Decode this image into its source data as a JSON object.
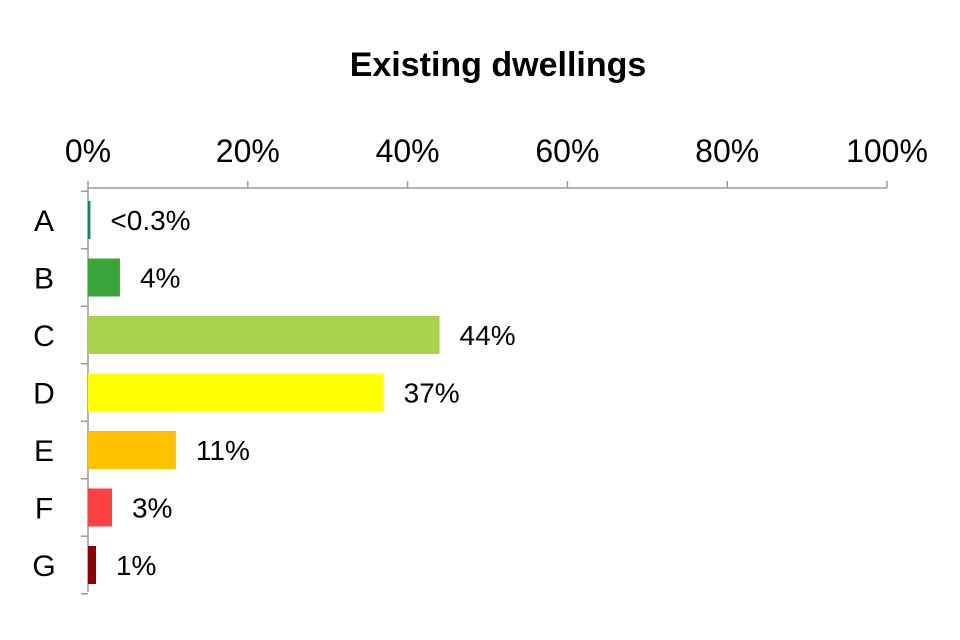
{
  "chart_data": {
    "type": "bar",
    "orientation": "horizontal",
    "title": "Existing dwellings",
    "xlabel": "",
    "ylabel": "",
    "categories": [
      "A",
      "B",
      "C",
      "D",
      "E",
      "F",
      "G"
    ],
    "values": [
      0.3,
      4,
      44,
      37,
      11,
      3,
      1
    ],
    "data_labels": [
      "<0.3%",
      "4%",
      "44%",
      "37%",
      "11%",
      "3%",
      "1%"
    ],
    "colors": [
      "#0a8a5a",
      "#3aa63a",
      "#aad14e",
      "#ffff00",
      "#ffc000",
      "#ff4040",
      "#8b0000"
    ],
    "xlim": [
      0,
      100
    ],
    "xticks": [
      0,
      20,
      40,
      60,
      80,
      100
    ],
    "xtick_labels": [
      "0%",
      "20%",
      "40%",
      "60%",
      "80%",
      "100%"
    ],
    "x_axis_position": "top",
    "grid": false,
    "legend": "none"
  }
}
